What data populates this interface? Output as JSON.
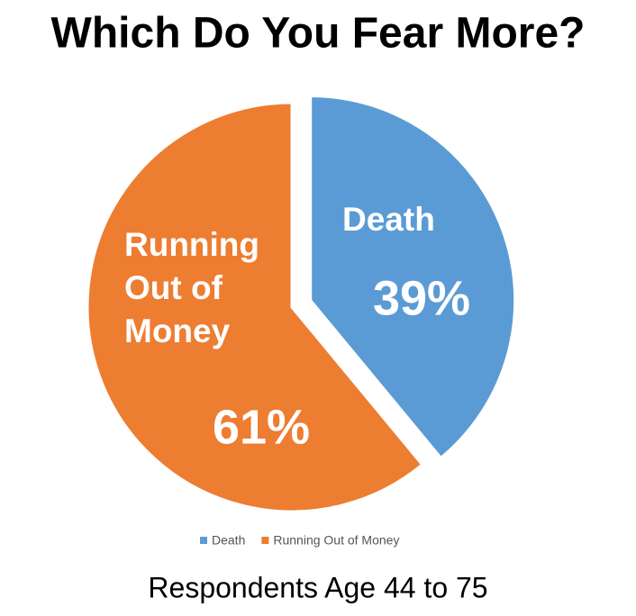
{
  "chart_data": {
    "type": "pie",
    "title": "Which Do You Fear More?",
    "subtitle": "Respondents Age 44 to 75",
    "categories": [
      "Death",
      "Running Out of Money"
    ],
    "values": [
      39,
      61
    ],
    "value_labels": [
      "39%",
      "61%"
    ],
    "colors": [
      "#5b9bd5",
      "#ed7d31"
    ],
    "exploded": [
      true,
      false
    ],
    "legend": "bottom"
  }
}
